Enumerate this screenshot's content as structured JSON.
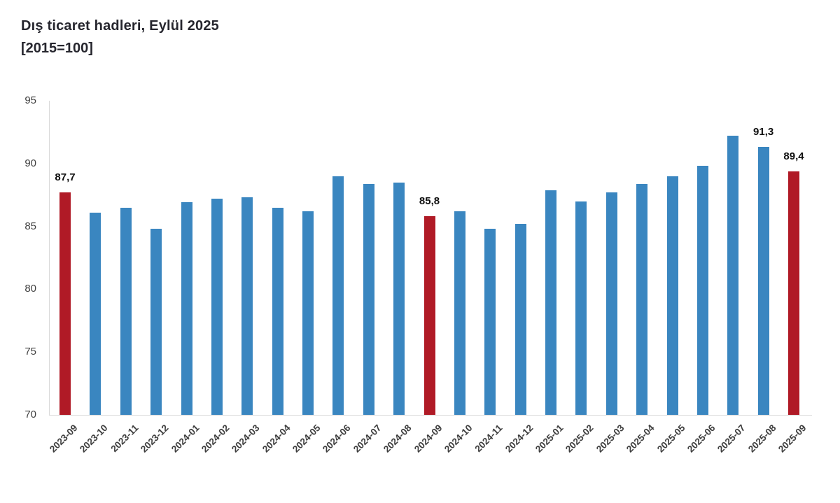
{
  "header": {
    "title": "Dış ticaret hadleri, Eylül 2025",
    "subtitle": "[2015=100]"
  },
  "chart_data": {
    "type": "bar",
    "title": "Dış ticaret hadleri, Eylül 2025",
    "subtitle": "[2015=100]",
    "categories": [
      "2023-09",
      "2023-10",
      "2023-11",
      "2023-12",
      "2024-01",
      "2024-02",
      "2024-03",
      "2024-04",
      "2024-05",
      "2024-06",
      "2024-07",
      "2024-08",
      "2024-09",
      "2024-10",
      "2024-11",
      "2024-12",
      "2025-01",
      "2025-02",
      "2025-03",
      "2025-04",
      "2025-05",
      "2025-06",
      "2025-07",
      "2025-08",
      "2025-09"
    ],
    "values": [
      87.7,
      86.1,
      86.5,
      84.8,
      86.9,
      87.2,
      87.3,
      86.5,
      86.2,
      89.0,
      88.4,
      88.5,
      85.8,
      86.2,
      84.8,
      85.2,
      87.9,
      87.0,
      87.7,
      88.4,
      89.0,
      89.8,
      92.2,
      91.3,
      89.4
    ],
    "xlabel": "",
    "ylabel": "",
    "ylim": [
      70,
      95
    ],
    "yticks": [
      70,
      75,
      80,
      85,
      90,
      95
    ],
    "grid": false,
    "legend": "none",
    "bar_color": "#3a86c0",
    "highlight_color": "#b01a26",
    "highlighted_indices": [
      0,
      12,
      24
    ],
    "data_labels": {
      "0": "87,7",
      "12": "85,8",
      "23": "91,3",
      "24": "89,4"
    },
    "axis_line_color": "#d9d9d9",
    "tick_label_color": "#404040",
    "data_label_color": "#0f0f0f"
  }
}
